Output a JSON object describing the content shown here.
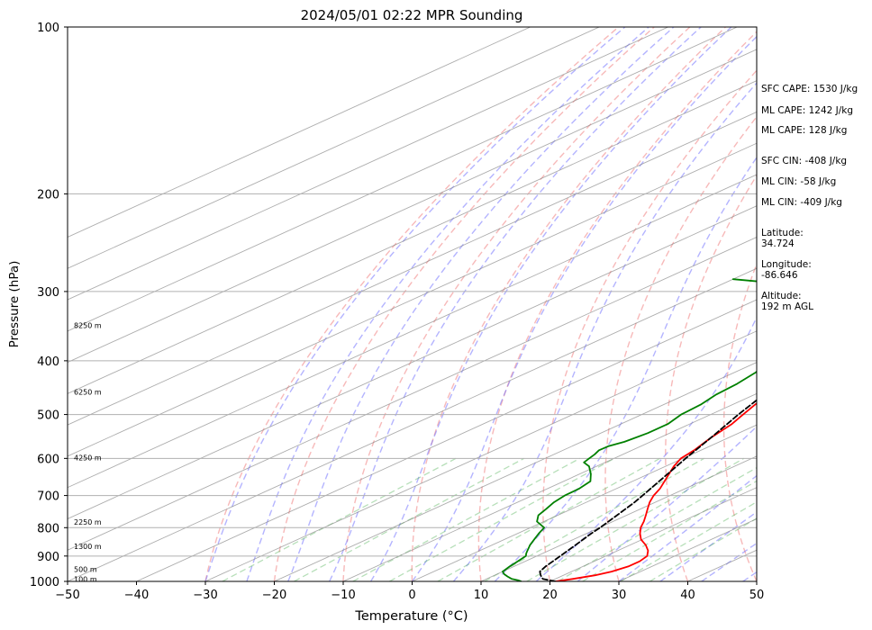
{
  "chart_data": {
    "type": "line",
    "title": "2024/05/01 02:22 MPR Sounding",
    "xlabel": "Temperature (°C)",
    "ylabel": "Pressure (hPa)",
    "xlim": [
      -50,
      50
    ],
    "ylim": [
      1000,
      100
    ],
    "y_scale": "log",
    "grid": true,
    "x_ticks": [
      "−50",
      "−40",
      "−30",
      "−20",
      "−10",
      "0",
      "10",
      "20",
      "30",
      "40",
      "50"
    ],
    "x_tick_values": [
      -50,
      -40,
      -30,
      -20,
      -10,
      0,
      10,
      20,
      30,
      40,
      50
    ],
    "y_ticks": [
      "100",
      "200",
      "300",
      "400",
      "500",
      "600",
      "700",
      "800",
      "900",
      "1000"
    ],
    "y_tick_values": [
      100,
      200,
      300,
      400,
      500,
      600,
      700,
      800,
      900,
      1000
    ],
    "height_labels": [
      {
        "text": "8250 m",
        "p": 345
      },
      {
        "text": "6250 m",
        "p": 455
      },
      {
        "text": "4250 m",
        "p": 598
      },
      {
        "text": "2250 m",
        "p": 782
      },
      {
        "text": "1300 m",
        "p": 865
      },
      {
        "text": "500 m",
        "p": 950
      },
      {
        "text": "100 m",
        "p": 990
      }
    ],
    "series": [
      {
        "color": "#ff0000",
        "points": [
          [
            1000,
            20.8
          ],
          [
            990,
            22.5
          ],
          [
            975,
            24.6
          ],
          [
            960,
            25.8
          ],
          [
            940,
            26.6
          ],
          [
            920,
            26.6
          ],
          [
            900,
            26.0
          ],
          [
            880,
            24.4
          ],
          [
            860,
            22.3
          ],
          [
            840,
            19.8
          ],
          [
            820,
            17.8
          ],
          [
            800,
            16.0
          ],
          [
            780,
            14.5
          ],
          [
            760,
            12.8
          ],
          [
            740,
            11.0
          ],
          [
            720,
            9.2
          ],
          [
            700,
            7.6
          ],
          [
            680,
            6.3
          ],
          [
            650,
            3.8
          ],
          [
            620,
            1.2
          ],
          [
            600,
            -0.3
          ],
          [
            580,
            -1.0
          ],
          [
            550,
            -2.6
          ],
          [
            520,
            -3.9
          ],
          [
            500,
            -5.3
          ],
          [
            480,
            -6.7
          ],
          [
            460,
            -8.1
          ],
          [
            440,
            -9.5
          ],
          [
            420,
            -10.9
          ],
          [
            400,
            -12.3
          ],
          [
            380,
            -14.2
          ],
          [
            360,
            -16.2
          ],
          [
            340,
            -18.2
          ],
          [
            320,
            -19.6
          ],
          [
            300,
            -20.6
          ],
          [
            290,
            -21.6
          ],
          [
            280,
            -22.6
          ],
          [
            270,
            -23.7
          ],
          [
            265,
            -24.5
          ]
        ]
      },
      {
        "color": "#008000",
        "points": [
          [
            1000,
            15.8
          ],
          [
            995,
            15.0
          ],
          [
            990,
            13.7
          ],
          [
            980,
            12.3
          ],
          [
            970,
            11.0
          ],
          [
            960,
            10.0
          ],
          [
            940,
            9.4
          ],
          [
            920,
            8.9
          ],
          [
            900,
            8.4
          ],
          [
            890,
            7.6
          ],
          [
            880,
            6.9
          ],
          [
            860,
            5.5
          ],
          [
            840,
            4.3
          ],
          [
            820,
            3.1
          ],
          [
            800,
            2.0
          ],
          [
            780,
            -1.0
          ],
          [
            760,
            -2.8
          ],
          [
            740,
            -3.7
          ],
          [
            720,
            -4.7
          ],
          [
            700,
            -5.3
          ],
          [
            680,
            -5.4
          ],
          [
            660,
            -6.1
          ],
          [
            640,
            -8.4
          ],
          [
            620,
            -11.1
          ],
          [
            610,
            -13.1
          ],
          [
            600,
            -13.6
          ],
          [
            590,
            -14.1
          ],
          [
            580,
            -14.8
          ],
          [
            570,
            -14.7
          ],
          [
            560,
            -13.8
          ],
          [
            540,
            -13.2
          ],
          [
            520,
            -13.2
          ],
          [
            500,
            -14.3
          ],
          [
            480,
            -14.6
          ],
          [
            460,
            -15.6
          ],
          [
            440,
            -16.0
          ],
          [
            420,
            -16.9
          ],
          [
            400,
            -18.7
          ],
          [
            380,
            -20.9
          ],
          [
            360,
            -21.0
          ],
          [
            340,
            -21.5
          ],
          [
            320,
            -23.0
          ],
          [
            305,
            -24.8
          ],
          [
            300,
            -27.2
          ],
          [
            295,
            -34.5
          ],
          [
            290,
            -42
          ],
          [
            285,
            -50
          ]
        ]
      },
      {
        "color": "#000000",
        "dashed": true,
        "points": [
          [
            1000,
            20.8
          ],
          [
            990,
            18.2
          ],
          [
            975,
            16.7
          ],
          [
            960,
            15.4
          ],
          [
            940,
            14.6
          ],
          [
            920,
            14.0
          ],
          [
            900,
            13.4
          ],
          [
            860,
            12.1
          ],
          [
            820,
            10.7
          ],
          [
            800,
            10.1
          ],
          [
            760,
            8.6
          ],
          [
            720,
            7.0
          ],
          [
            700,
            6.0
          ],
          [
            650,
            3.3
          ],
          [
            600,
            0.4
          ],
          [
            550,
            -2.6
          ],
          [
            500,
            -6.0
          ],
          [
            450,
            -9.4
          ],
          [
            400,
            -13.0
          ],
          [
            350,
            -17.0
          ],
          [
            300,
            -21.1
          ],
          [
            280,
            -22.4
          ],
          [
            265,
            -23.3
          ]
        ]
      }
    ]
  },
  "annotations": {
    "sfc_cape": "SFC CAPE: 1530 J/kg",
    "ml_cape_1": "ML CAPE: 1242 J/kg",
    "ml_cape_2": "ML CAPE: 128 J/kg",
    "sfc_cin": "SFC CIN: -408 J/kg",
    "ml_cin_1": "ML CIN: -58 J/kg",
    "ml_cin_2": "ML CIN: -409 J/kg",
    "latitude": "Latitude:\n34.724",
    "longitude": "Longitude:\n-86.646",
    "altitude": "Altitude:\n192 m AGL"
  },
  "colors": {
    "temperature": "#ff0000",
    "dewpoint": "#008000",
    "parcel": "#000000",
    "dry_adiabat": "#f08080",
    "moist_adiabat": "#6a6aff",
    "mixing_ratio": "#4caf50",
    "isotherm": "#808080"
  }
}
